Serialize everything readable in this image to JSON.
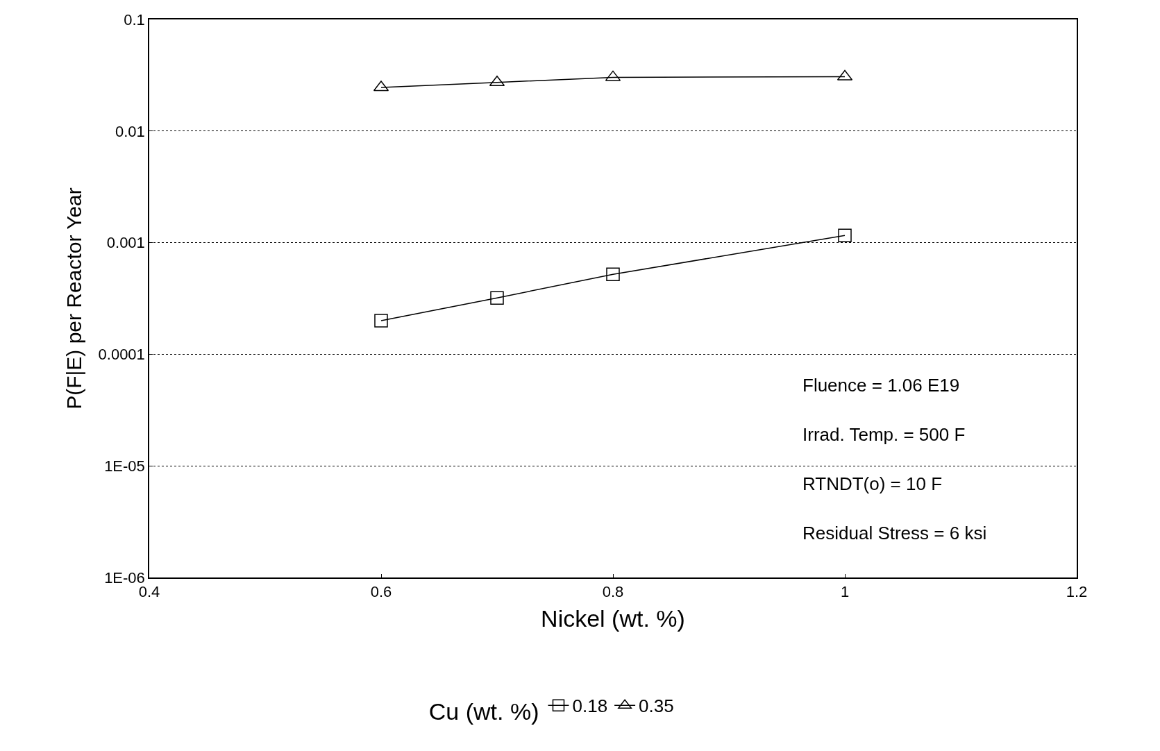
{
  "chart_data": {
    "type": "line",
    "xlabel": "Nickel (wt. %)",
    "ylabel": "P(F|E) per Reactor Year",
    "legend_title": "Cu (wt. %)",
    "x": [
      0.6,
      0.7,
      0.8,
      1.0
    ],
    "series": [
      {
        "name": "0.18",
        "color": "#000000",
        "marker": "square",
        "values": [
          0.0002,
          0.00032,
          0.00052,
          0.00116
        ]
      },
      {
        "name": "0.35",
        "color": "#000000",
        "marker": "triangle",
        "values": [
          0.0246,
          0.0273,
          0.0303,
          0.0307
        ]
      }
    ],
    "log": "y",
    "grid": "y",
    "legend": "bottom",
    "line_style": "solid",
    "xlim": [
      0.4,
      1.2
    ],
    "xticks": [
      0.4,
      0.6,
      0.8,
      {
        "value": 1.0,
        "label": "1"
      },
      1.2
    ],
    "ylim": [
      1e-06,
      0.1
    ],
    "yticks": [
      {
        "value": 1e-06,
        "label": "1E-06"
      },
      {
        "value": 1e-05,
        "label": "1E-05"
      },
      0.0001,
      0.001,
      0.01,
      0.1
    ],
    "annotations": [
      "Fluence = 1.06 E19",
      "Irrad. Temp. = 500 F",
      "RTNDT(o) = 10 F",
      "Residual Stress = 6 ksi"
    ]
  }
}
